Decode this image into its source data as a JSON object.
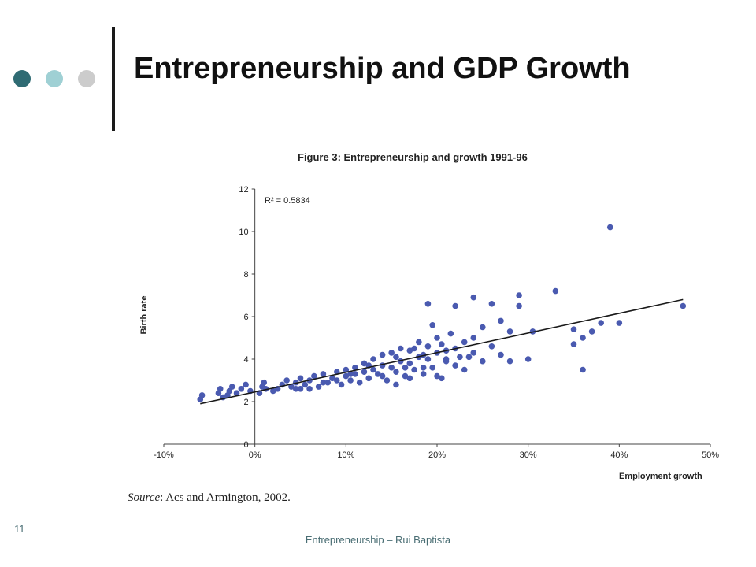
{
  "slide": {
    "title": "Entrepreneurship and GDP Growth",
    "page_number": "11",
    "footer": "Entrepreneurship – Rui Baptista",
    "source_label": "Source",
    "source_text": ": Acs and Armington, 2002.",
    "dot_colors": [
      "#2f6b73",
      "#9fd0d4",
      "#cccccc"
    ]
  },
  "chart_data": {
    "type": "scatter",
    "title": "Figure 3: Entrepreneurship and growth 1991-96",
    "xlabel": "Employment growth",
    "ylabel": "Birth rate",
    "xlim": [
      -0.1,
      0.5
    ],
    "ylim": [
      0,
      12
    ],
    "x_ticks": [
      "-10%",
      "0%",
      "10%",
      "20%",
      "30%",
      "40%",
      "50%"
    ],
    "y_ticks": [
      "0",
      "2",
      "4",
      "6",
      "8",
      "10",
      "12"
    ],
    "annotation": "R² = 0.5834",
    "point_color": "#4a5ab0",
    "trendline": {
      "x": [
        -0.06,
        0.47
      ],
      "y": [
        1.9,
        6.8
      ],
      "color": "#1a1a1a"
    },
    "points": [
      [
        -0.06,
        2.1
      ],
      [
        -0.058,
        2.3
      ],
      [
        -0.04,
        2.4
      ],
      [
        -0.038,
        2.6
      ],
      [
        -0.035,
        2.2
      ],
      [
        -0.03,
        2.3
      ],
      [
        -0.028,
        2.5
      ],
      [
        -0.025,
        2.7
      ],
      [
        -0.02,
        2.4
      ],
      [
        -0.015,
        2.6
      ],
      [
        -0.01,
        2.8
      ],
      [
        -0.005,
        2.5
      ],
      [
        0.005,
        2.4
      ],
      [
        0.008,
        2.7
      ],
      [
        0.01,
        2.9
      ],
      [
        0.012,
        2.6
      ],
      [
        0.02,
        2.5
      ],
      [
        0.025,
        2.6
      ],
      [
        0.03,
        2.8
      ],
      [
        0.035,
        3.0
      ],
      [
        0.04,
        2.7
      ],
      [
        0.045,
        2.9
      ],
      [
        0.05,
        3.1
      ],
      [
        0.05,
        2.6
      ],
      [
        0.055,
        2.8
      ],
      [
        0.06,
        3.0
      ],
      [
        0.065,
        3.2
      ],
      [
        0.07,
        2.7
      ],
      [
        0.075,
        3.3
      ],
      [
        0.08,
        2.9
      ],
      [
        0.085,
        3.1
      ],
      [
        0.09,
        3.4
      ],
      [
        0.095,
        2.8
      ],
      [
        0.1,
        3.2
      ],
      [
        0.1,
        3.5
      ],
      [
        0.105,
        3.0
      ],
      [
        0.11,
        3.6
      ],
      [
        0.11,
        3.3
      ],
      [
        0.115,
        2.9
      ],
      [
        0.12,
        3.4
      ],
      [
        0.12,
        3.8
      ],
      [
        0.125,
        3.1
      ],
      [
        0.13,
        3.5
      ],
      [
        0.13,
        4.0
      ],
      [
        0.135,
        3.3
      ],
      [
        0.14,
        3.7
      ],
      [
        0.14,
        4.2
      ],
      [
        0.145,
        3.0
      ],
      [
        0.15,
        3.6
      ],
      [
        0.15,
        4.3
      ],
      [
        0.155,
        3.4
      ],
      [
        0.16,
        3.9
      ],
      [
        0.16,
        4.5
      ],
      [
        0.165,
        3.2
      ],
      [
        0.17,
        3.8
      ],
      [
        0.17,
        4.4
      ],
      [
        0.175,
        3.5
      ],
      [
        0.18,
        4.1
      ],
      [
        0.18,
        4.8
      ],
      [
        0.185,
        3.3
      ],
      [
        0.19,
        4.0
      ],
      [
        0.19,
        4.6
      ],
      [
        0.195,
        3.6
      ],
      [
        0.2,
        4.3
      ],
      [
        0.2,
        5.0
      ],
      [
        0.2,
        3.2
      ],
      [
        0.205,
        4.7
      ],
      [
        0.21,
        3.9
      ],
      [
        0.21,
        4.4
      ],
      [
        0.215,
        5.2
      ],
      [
        0.22,
        3.7
      ],
      [
        0.22,
        4.5
      ],
      [
        0.225,
        4.1
      ],
      [
        0.23,
        4.8
      ],
      [
        0.23,
        3.5
      ],
      [
        0.24,
        4.3
      ],
      [
        0.24,
        5.0
      ],
      [
        0.25,
        3.9
      ],
      [
        0.25,
        5.5
      ],
      [
        0.26,
        4.6
      ],
      [
        0.26,
        6.6
      ],
      [
        0.27,
        4.2
      ],
      [
        0.27,
        5.8
      ],
      [
        0.28,
        5.3
      ],
      [
        0.28,
        3.9
      ],
      [
        0.29,
        6.5
      ],
      [
        0.29,
        7.0
      ],
      [
        0.3,
        4.0
      ],
      [
        0.305,
        5.3
      ],
      [
        0.33,
        7.2
      ],
      [
        0.35,
        4.7
      ],
      [
        0.35,
        5.4
      ],
      [
        0.36,
        3.5
      ],
      [
        0.36,
        5.0
      ],
      [
        0.37,
        5.3
      ],
      [
        0.38,
        5.7
      ],
      [
        0.39,
        10.2
      ],
      [
        0.4,
        5.7
      ],
      [
        0.47,
        6.5
      ],
      [
        0.19,
        6.6
      ],
      [
        0.22,
        6.5
      ],
      [
        0.24,
        6.9
      ],
      [
        0.045,
        2.6
      ],
      [
        0.06,
        2.6
      ],
      [
        0.075,
        2.9
      ],
      [
        0.09,
        3.0
      ],
      [
        0.105,
        3.3
      ],
      [
        0.125,
        3.7
      ],
      [
        0.14,
        3.2
      ],
      [
        0.155,
        4.1
      ],
      [
        0.165,
        3.6
      ],
      [
        0.175,
        4.5
      ],
      [
        0.185,
        4.2
      ],
      [
        0.195,
        5.6
      ],
      [
        0.205,
        3.1
      ],
      [
        0.155,
        2.8
      ],
      [
        0.17,
        3.1
      ],
      [
        0.185,
        3.6
      ],
      [
        0.21,
        4.0
      ],
      [
        0.235,
        4.1
      ]
    ]
  }
}
